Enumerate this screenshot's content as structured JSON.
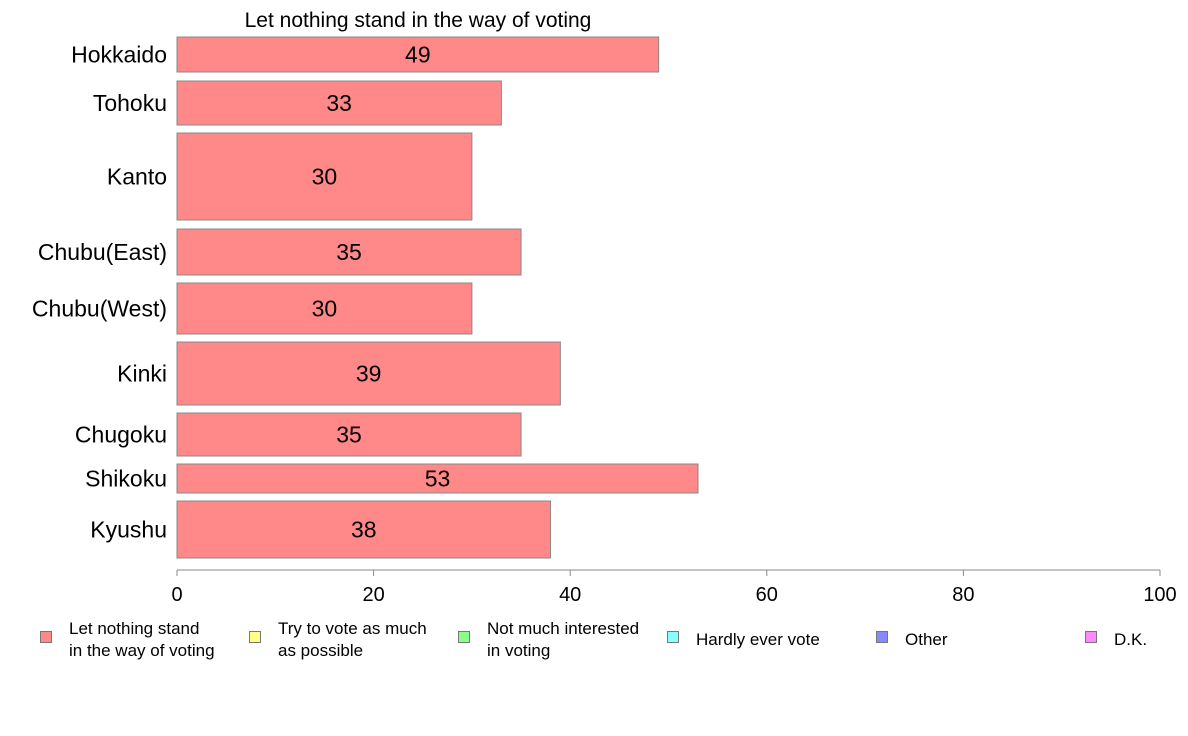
{
  "chart_data": {
    "type": "bar",
    "orientation": "horizontal",
    "title": "Let nothing stand in the way of voting",
    "categories": [
      "Hokkaido",
      "Tohoku",
      "Kanto",
      "Chubu(East)",
      "Chubu(West)",
      "Kinki",
      "Chugoku",
      "Shikoku",
      "Kyushu"
    ],
    "series": [
      {
        "name": "Let nothing stand in the way of voting",
        "values": [
          49,
          33,
          30,
          35,
          30,
          39,
          35,
          53,
          38
        ],
        "data_labels": [
          "49",
          "33",
          "30",
          "35",
          "30",
          "39",
          "35",
          "53",
          "38"
        ],
        "color": "#ff8888"
      }
    ],
    "xlim": [
      0,
      100
    ],
    "x_ticks": [
      0,
      20,
      40,
      60,
      80,
      100
    ],
    "x_tick_labels": [
      "0",
      "20",
      "40",
      "60",
      "80",
      "100"
    ],
    "xlabel": "",
    "ylabel": "",
    "grid": false,
    "legend_position": "bottom"
  },
  "legend": {
    "items": [
      {
        "label": "Let nothing stand\nin the way of voting",
        "color": "#ff8888"
      },
      {
        "label": "Try to vote as much\nas possible",
        "color": "#ffff88"
      },
      {
        "label": "Not much interested\nin voting",
        "color": "#88ff88"
      },
      {
        "label": "Hardly ever vote",
        "color": "#88ffff"
      },
      {
        "label": "Other",
        "color": "#8888ff"
      },
      {
        "label": "D.K.",
        "color": "#ff88ff"
      }
    ]
  }
}
